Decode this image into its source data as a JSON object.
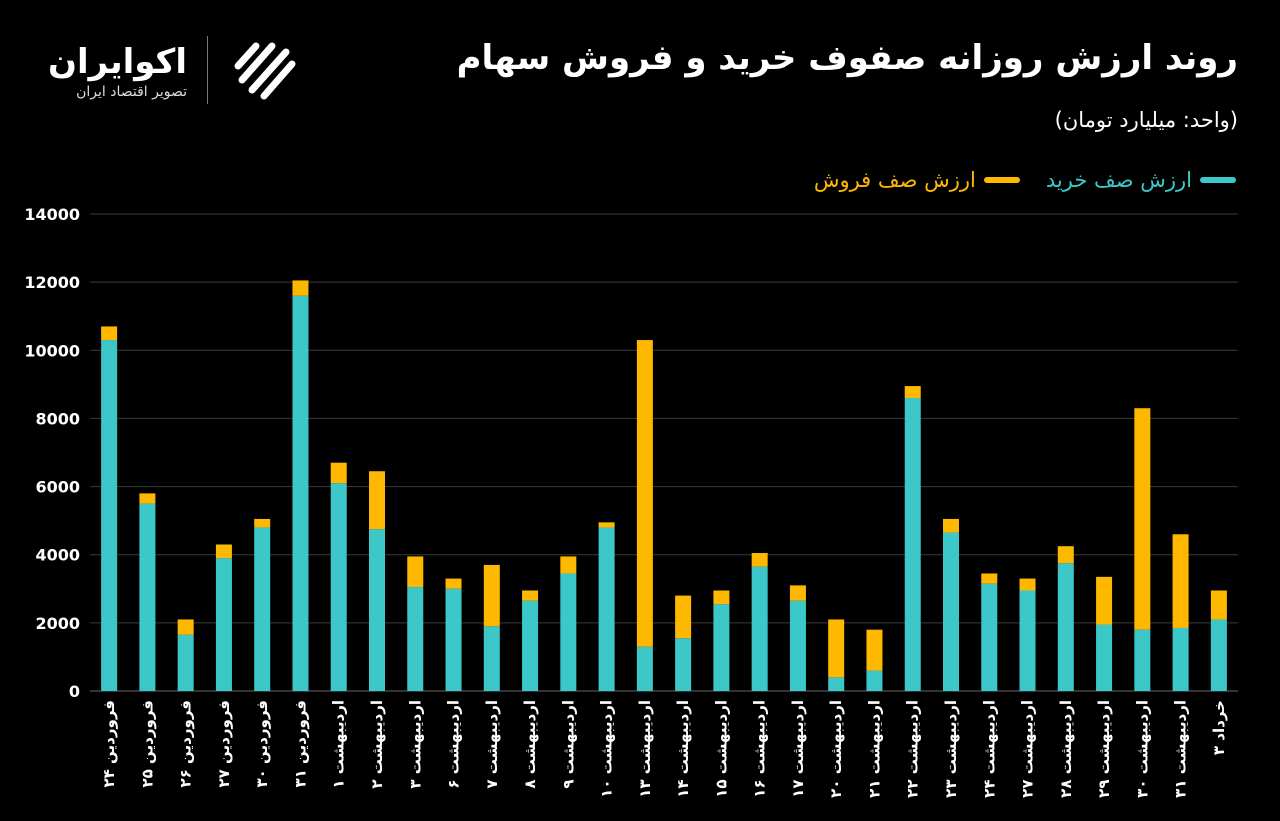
{
  "brand": {
    "name": "اکوایران",
    "tagline": "تصویر اقتصاد ایران"
  },
  "colors": {
    "buy": "#3cc8c8",
    "sell": "#ffb800",
    "grid": "#3a3a3a",
    "background": "#000000"
  },
  "chart_data": {
    "type": "bar",
    "stacked": true,
    "title": "روند ارزش روزانه صفوف خرید و فروش سهام",
    "subtitle": "(واحد: میلیارد تومان)",
    "ylim": [
      0,
      14000
    ],
    "yticks": [
      "0",
      "2000",
      "4000",
      "6000",
      "8000",
      "10000",
      "12000",
      "14000"
    ],
    "legend_position": "top-right",
    "grid": true,
    "categories": [
      "فروردین ۲۴",
      "فروردین ۲۵",
      "فروردین ۲۶",
      "فروردین ۲۷",
      "فروردین ۳۰",
      "فروردین ۳۱",
      "اردیبهشت ۱",
      "اردیبهشت ۲",
      "اردیبهشت ۳",
      "اردیبهشت ۶",
      "اردیبهشت ۷",
      "اردیبهشت ۸",
      "اردیبهشت ۹",
      "اردیبهشت ۱۰",
      "اردیبهشت ۱۳",
      "اردیبهشت ۱۴",
      "اردیبهشت ۱۵",
      "اردیبهشت ۱۶",
      "اردیبهشت ۱۷",
      "اردیبهشت ۲۰",
      "اردیبهشت ۲۱",
      "اردیبهشت ۲۲",
      "اردیبهشت ۲۳",
      "اردیبهشت ۲۴",
      "اردیبهشت ۲۷",
      "اردیبهشت ۲۸",
      "اردیبهشت ۲۹",
      "اردیبهشت ۳۰",
      "اردیبهشت ۳۱",
      "خرداد ۳"
    ],
    "series": [
      {
        "name": "ارزش صف خرید",
        "values": [
          10300,
          5500,
          1650,
          3900,
          4800,
          11600,
          6100,
          4750,
          3050,
          3000,
          1900,
          2650,
          3450,
          4800,
          1300,
          1550,
          2550,
          3650,
          2650,
          400,
          600,
          8600,
          4650,
          3150,
          2950,
          3750,
          1950,
          1800,
          1850,
          2100
        ]
      },
      {
        "name": "ارزش صف فروش",
        "values": [
          400,
          300,
          450,
          400,
          250,
          450,
          600,
          1700,
          900,
          300,
          1800,
          300,
          500,
          150,
          9000,
          1250,
          400,
          400,
          450,
          1700,
          1200,
          350,
          400,
          300,
          350,
          500,
          1400,
          6500,
          2750,
          850
        ]
      }
    ]
  }
}
